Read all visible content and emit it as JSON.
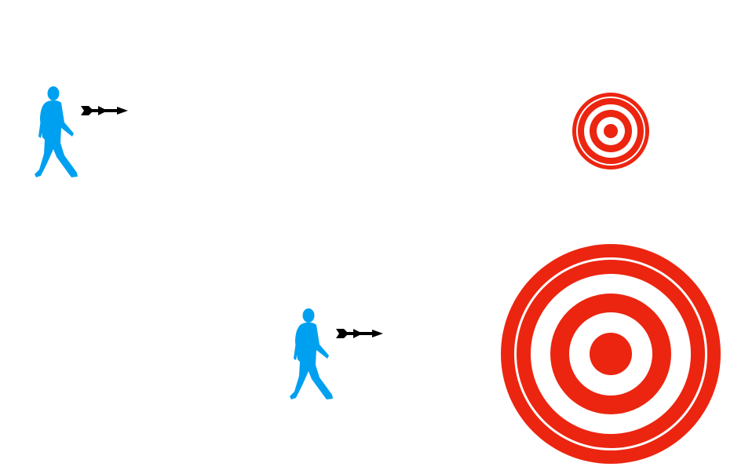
{
  "colors": {
    "person": "#00a0f0",
    "target_red": "#ec2510",
    "target_white": "#ffffff",
    "dart": "#000000",
    "background": "#ffffff"
  },
  "scenes": [
    {
      "person_icon": "walking-person-icon",
      "dart_icon": "dart-icon",
      "target_icon": "target-icon",
      "relative_distance": "far"
    },
    {
      "person_icon": "walking-person-icon",
      "dart_icon": "dart-icon",
      "target_icon": "target-icon",
      "relative_distance": "near"
    }
  ]
}
